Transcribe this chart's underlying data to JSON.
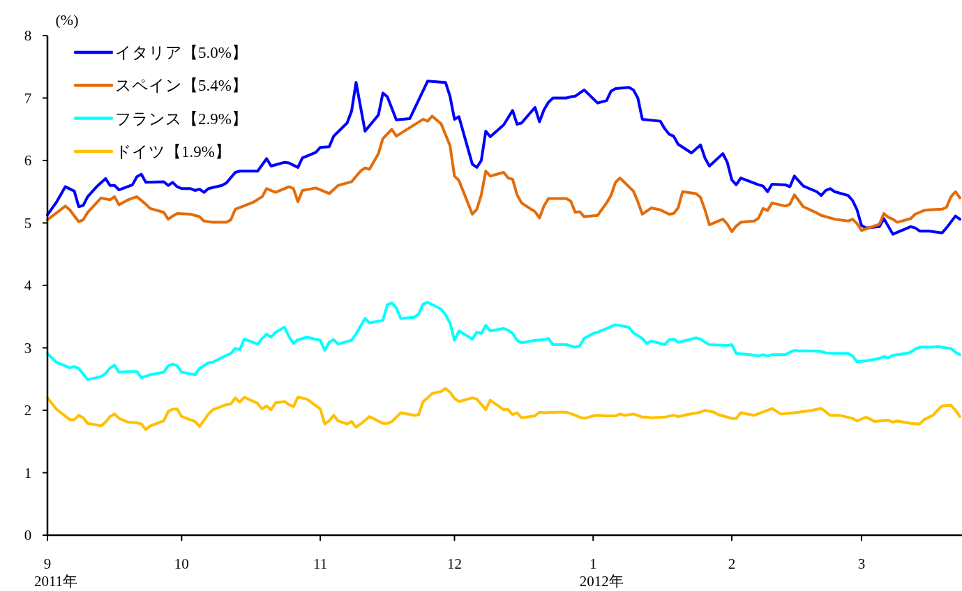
{
  "chart_data": {
    "type": "line",
    "ylabel": "(%)",
    "legend": "top left",
    "xlim": [
      "2011-09-01",
      "2012-03-23"
    ],
    "ylim": [
      0,
      8
    ],
    "yticks": [
      0,
      1,
      2,
      3,
      4,
      5,
      6,
      7,
      8
    ],
    "xticks": [
      {
        "value": "2011-09-01",
        "label": "9\n2011年"
      },
      {
        "value": "2011-10-01",
        "label": "10"
      },
      {
        "value": "2011-11-01",
        "label": "11"
      },
      {
        "value": "2011-12-01",
        "label": "12"
      },
      {
        "value": "2012-01-01",
        "label": "1\n2012年"
      },
      {
        "value": "2012-02-01",
        "label": "2"
      },
      {
        "value": "2012-03-01",
        "label": "3"
      }
    ],
    "series": [
      {
        "name": "イタリア【5.0%】",
        "color": "#0000ff",
        "x": [
          "2011-09-01",
          "2011-09-03",
          "2011-09-05",
          "2011-09-07",
          "2011-09-08",
          "2011-09-09",
          "2011-09-10",
          "2011-09-12",
          "2011-09-14",
          "2011-09-15",
          "2011-09-16",
          "2011-09-17",
          "2011-09-20",
          "2011-09-21",
          "2011-09-22",
          "2011-09-23",
          "2011-09-27",
          "2011-09-28",
          "2011-09-29",
          "2011-09-30",
          "2011-10-01",
          "2011-10-03",
          "2011-10-04",
          "2011-10-05",
          "2011-10-06",
          "2011-10-07",
          "2011-10-10",
          "2011-10-11",
          "2011-10-13",
          "2011-10-14",
          "2011-10-18",
          "2011-10-19",
          "2011-10-20",
          "2011-10-21",
          "2011-10-24",
          "2011-10-25",
          "2011-10-27",
          "2011-10-28",
          "2011-10-31",
          "2011-11-01",
          "2011-11-03",
          "2011-11-04",
          "2011-11-07",
          "2011-11-08",
          "2011-11-09",
          "2011-11-11",
          "2011-11-14",
          "2011-11-15",
          "2011-11-16",
          "2011-11-18",
          "2011-11-21",
          "2011-11-25",
          "2011-11-29",
          "2011-11-30",
          "2011-12-01",
          "2011-12-02",
          "2011-12-05",
          "2011-12-06",
          "2011-12-07",
          "2011-12-08",
          "2011-12-09",
          "2011-12-12",
          "2011-12-14",
          "2011-12-15",
          "2011-12-16",
          "2011-12-19",
          "2011-12-20",
          "2011-12-21",
          "2011-12-22",
          "2011-12-23",
          "2011-12-26",
          "2011-12-27",
          "2011-12-28",
          "2011-12-30",
          "2012-01-02",
          "2012-01-04",
          "2012-01-05",
          "2012-01-06",
          "2012-01-09",
          "2012-01-10",
          "2012-01-11",
          "2012-01-12",
          "2012-01-16",
          "2012-01-17",
          "2012-01-18",
          "2012-01-19",
          "2012-01-20",
          "2012-01-23",
          "2012-01-25",
          "2012-01-26",
          "2012-01-27",
          "2012-01-30",
          "2012-01-31",
          "2012-02-01",
          "2012-02-02",
          "2012-02-03",
          "2012-02-07",
          "2012-02-08",
          "2012-02-09",
          "2012-02-10",
          "2012-02-13",
          "2012-02-14",
          "2012-02-15",
          "2012-02-17",
          "2012-02-20",
          "2012-02-21",
          "2012-02-22",
          "2012-02-23",
          "2012-02-24",
          "2012-02-27",
          "2012-02-28",
          "2012-02-29",
          "2012-03-01",
          "2012-03-02",
          "2012-03-05",
          "2012-03-06",
          "2012-03-08",
          "2012-03-12",
          "2012-03-13",
          "2012-03-14",
          "2012-03-16",
          "2012-03-19",
          "2012-03-20",
          "2012-03-22",
          "2012-03-23"
        ],
        "values": [
          5.13,
          5.33,
          5.58,
          5.51,
          5.26,
          5.28,
          5.42,
          5.58,
          5.71,
          5.6,
          5.6,
          5.53,
          5.61,
          5.74,
          5.78,
          5.65,
          5.66,
          5.6,
          5.65,
          5.58,
          5.55,
          5.55,
          5.52,
          5.54,
          5.49,
          5.55,
          5.6,
          5.64,
          5.81,
          5.83,
          5.83,
          5.93,
          6.03,
          5.91,
          5.97,
          5.96,
          5.89,
          6.04,
          6.13,
          6.21,
          6.22,
          6.39,
          6.6,
          6.79,
          7.25,
          6.47,
          6.73,
          7.08,
          7.02,
          6.65,
          6.67,
          7.27,
          7.25,
          7.03,
          6.66,
          6.7,
          5.94,
          5.89,
          6.0,
          6.47,
          6.38,
          6.57,
          6.8,
          6.58,
          6.6,
          6.85,
          6.62,
          6.81,
          6.93,
          7.0,
          7.0,
          7.02,
          7.03,
          7.13,
          6.92,
          6.96,
          7.11,
          7.15,
          7.17,
          7.13,
          7.0,
          6.66,
          6.63,
          6.51,
          6.42,
          6.39,
          6.26,
          6.12,
          6.25,
          6.04,
          5.91,
          6.11,
          5.97,
          5.69,
          5.61,
          5.72,
          5.61,
          5.59,
          5.5,
          5.62,
          5.61,
          5.58,
          5.75,
          5.59,
          5.5,
          5.44,
          5.52,
          5.55,
          5.5,
          5.44,
          5.36,
          5.21,
          4.96,
          4.92,
          4.94,
          5.07,
          4.82,
          4.94,
          4.92,
          4.87,
          4.87,
          4.84,
          4.92,
          5.11,
          5.06
        ]
      },
      {
        "name": "スペイン【5.4%】",
        "color": "#e36c0a",
        "x": [
          "2011-09-01",
          "2011-09-05",
          "2011-09-06",
          "2011-09-08",
          "2011-09-09",
          "2011-09-10",
          "2011-09-13",
          "2011-09-15",
          "2011-09-16",
          "2011-09-17",
          "2011-09-19",
          "2011-09-21",
          "2011-09-23",
          "2011-09-24",
          "2011-09-27",
          "2011-09-28",
          "2011-09-29",
          "2011-09-30",
          "2011-10-03",
          "2011-10-05",
          "2011-10-06",
          "2011-10-08",
          "2011-10-11",
          "2011-10-12",
          "2011-10-13",
          "2011-10-17",
          "2011-10-19",
          "2011-10-20",
          "2011-10-22",
          "2011-10-25",
          "2011-10-26",
          "2011-10-27",
          "2011-10-28",
          "2011-10-31",
          "2011-11-03",
          "2011-11-05",
          "2011-11-08",
          "2011-11-10",
          "2011-11-11",
          "2011-11-12",
          "2011-11-14",
          "2011-11-15",
          "2011-11-17",
          "2011-11-18",
          "2011-11-24",
          "2011-11-25",
          "2011-11-26",
          "2011-11-28",
          "2011-11-30",
          "2011-12-01",
          "2011-12-02",
          "2011-12-05",
          "2011-12-06",
          "2011-12-07",
          "2011-12-08",
          "2011-12-09",
          "2011-12-12",
          "2011-12-13",
          "2011-12-14",
          "2011-12-15",
          "2011-12-16",
          "2011-12-19",
          "2011-12-20",
          "2011-12-21",
          "2011-12-22",
          "2011-12-26",
          "2011-12-27",
          "2011-12-28",
          "2011-12-29",
          "2011-12-30",
          "2012-01-02",
          "2012-01-04",
          "2012-01-05",
          "2012-01-06",
          "2012-01-07",
          "2012-01-09",
          "2012-01-10",
          "2012-01-11",
          "2012-01-12",
          "2012-01-14",
          "2012-01-16",
          "2012-01-18",
          "2012-01-19",
          "2012-01-20",
          "2012-01-21",
          "2012-01-24",
          "2012-01-25",
          "2012-01-26",
          "2012-01-27",
          "2012-01-30",
          "2012-01-31",
          "2012-02-01",
          "2012-02-02",
          "2012-02-03",
          "2012-02-06",
          "2012-02-07",
          "2012-02-08",
          "2012-02-09",
          "2012-02-10",
          "2012-02-13",
          "2012-02-14",
          "2012-02-15",
          "2012-02-17",
          "2012-02-20",
          "2012-02-21",
          "2012-02-24",
          "2012-02-27",
          "2012-02-28",
          "2012-02-29",
          "2012-03-01",
          "2012-03-05",
          "2012-03-06",
          "2012-03-07",
          "2012-03-08",
          "2012-03-09",
          "2012-03-12",
          "2012-03-13",
          "2012-03-15",
          "2012-03-16",
          "2012-03-19",
          "2012-03-20",
          "2012-03-21",
          "2012-03-22",
          "2012-03-23"
        ],
        "values": [
          5.05,
          5.27,
          5.21,
          5.02,
          5.05,
          5.17,
          5.4,
          5.37,
          5.42,
          5.29,
          5.37,
          5.42,
          5.3,
          5.23,
          5.17,
          5.06,
          5.11,
          5.15,
          5.14,
          5.1,
          5.03,
          5.01,
          5.01,
          5.05,
          5.22,
          5.33,
          5.42,
          5.55,
          5.49,
          5.58,
          5.55,
          5.34,
          5.52,
          5.56,
          5.47,
          5.6,
          5.66,
          5.83,
          5.88,
          5.86,
          6.11,
          6.35,
          6.5,
          6.39,
          6.66,
          6.63,
          6.71,
          6.59,
          6.24,
          5.75,
          5.68,
          5.14,
          5.22,
          5.45,
          5.83,
          5.75,
          5.81,
          5.72,
          5.7,
          5.45,
          5.32,
          5.18,
          5.08,
          5.27,
          5.39,
          5.39,
          5.35,
          5.17,
          5.18,
          5.1,
          5.12,
          5.32,
          5.44,
          5.65,
          5.72,
          5.58,
          5.51,
          5.34,
          5.14,
          5.24,
          5.21,
          5.14,
          5.15,
          5.24,
          5.5,
          5.47,
          5.41,
          5.21,
          4.97,
          5.06,
          4.98,
          4.86,
          4.95,
          5.01,
          5.03,
          5.08,
          5.23,
          5.2,
          5.32,
          5.27,
          5.3,
          5.45,
          5.26,
          5.16,
          5.12,
          5.06,
          5.03,
          5.06,
          4.99,
          4.88,
          4.98,
          5.15,
          5.09,
          5.06,
          5.01,
          5.07,
          5.14,
          5.2,
          5.21,
          5.22,
          5.25,
          5.42,
          5.5,
          5.4
        ]
      },
      {
        "name": "フランス【2.9%】",
        "color": "#00ffff",
        "x": [
          "2011-09-01",
          "2011-09-03",
          "2011-09-06",
          "2011-09-07",
          "2011-09-08",
          "2011-09-10",
          "2011-09-13",
          "2011-09-14",
          "2011-09-15",
          "2011-09-16",
          "2011-09-17",
          "2011-09-19",
          "2011-09-21",
          "2011-09-22",
          "2011-09-24",
          "2011-09-27",
          "2011-09-28",
          "2011-09-29",
          "2011-09-30",
          "2011-10-01",
          "2011-10-04",
          "2011-10-05",
          "2011-10-07",
          "2011-10-08",
          "2011-10-11",
          "2011-10-12",
          "2011-10-13",
          "2011-10-14",
          "2011-10-15",
          "2011-10-18",
          "2011-10-19",
          "2011-10-20",
          "2011-10-21",
          "2011-10-22",
          "2011-10-24",
          "2011-10-25",
          "2011-10-26",
          "2011-10-27",
          "2011-10-29",
          "2011-11-01",
          "2011-11-02",
          "2011-11-03",
          "2011-11-04",
          "2011-11-05",
          "2011-11-08",
          "2011-11-09",
          "2011-11-11",
          "2011-11-12",
          "2011-11-15",
          "2011-11-16",
          "2011-11-17",
          "2011-11-18",
          "2011-11-19",
          "2011-11-22",
          "2011-11-23",
          "2011-11-24",
          "2011-11-25",
          "2011-11-28",
          "2011-11-29",
          "2011-11-30",
          "2011-12-01",
          "2011-12-02",
          "2011-12-05",
          "2011-12-06",
          "2011-12-07",
          "2011-12-08",
          "2011-12-09",
          "2011-12-12",
          "2011-12-13",
          "2011-12-14",
          "2011-12-15",
          "2011-12-16",
          "2011-12-19",
          "2011-12-21",
          "2011-12-22",
          "2011-12-23",
          "2011-12-26",
          "2011-12-28",
          "2011-12-29",
          "2011-12-30",
          "2012-01-01",
          "2012-01-02",
          "2012-01-04",
          "2012-01-06",
          "2012-01-09",
          "2012-01-10",
          "2012-01-12",
          "2012-01-13",
          "2012-01-14",
          "2012-01-17",
          "2012-01-18",
          "2012-01-19",
          "2012-01-20",
          "2012-01-23",
          "2012-01-24",
          "2012-01-25",
          "2012-01-26",
          "2012-01-27",
          "2012-01-31",
          "2012-02-01",
          "2012-02-02",
          "2012-02-05",
          "2012-02-07",
          "2012-02-08",
          "2012-02-09",
          "2012-02-10",
          "2012-02-13",
          "2012-02-14",
          "2012-02-15",
          "2012-02-16",
          "2012-02-19",
          "2012-02-21",
          "2012-02-22",
          "2012-02-24",
          "2012-02-27",
          "2012-02-28",
          "2012-02-29",
          "2012-03-02",
          "2012-03-05",
          "2012-03-06",
          "2012-03-07",
          "2012-03-08",
          "2012-03-11",
          "2012-03-12",
          "2012-03-13",
          "2012-03-14",
          "2012-03-17",
          "2012-03-18",
          "2012-03-21",
          "2012-03-22",
          "2012-03-23"
        ],
        "values": [
          2.91,
          2.77,
          2.68,
          2.7,
          2.67,
          2.49,
          2.54,
          2.59,
          2.68,
          2.72,
          2.61,
          2.62,
          2.62,
          2.52,
          2.57,
          2.61,
          2.71,
          2.74,
          2.71,
          2.61,
          2.57,
          2.67,
          2.76,
          2.77,
          2.88,
          2.91,
          2.99,
          2.97,
          3.14,
          3.06,
          3.15,
          3.22,
          3.17,
          3.25,
          3.33,
          3.18,
          3.07,
          3.13,
          3.17,
          3.12,
          2.96,
          3.09,
          3.13,
          3.06,
          3.12,
          3.22,
          3.47,
          3.4,
          3.44,
          3.69,
          3.72,
          3.64,
          3.47,
          3.49,
          3.54,
          3.7,
          3.73,
          3.62,
          3.53,
          3.4,
          3.12,
          3.27,
          3.14,
          3.25,
          3.23,
          3.36,
          3.27,
          3.31,
          3.28,
          3.23,
          3.12,
          3.08,
          3.12,
          3.13,
          3.15,
          3.05,
          3.05,
          3.01,
          3.03,
          3.15,
          3.23,
          3.25,
          3.31,
          3.37,
          3.33,
          3.24,
          3.15,
          3.07,
          3.11,
          3.05,
          3.13,
          3.14,
          3.09,
          3.14,
          3.16,
          3.14,
          3.09,
          3.05,
          3.04,
          3.05,
          2.91,
          2.89,
          2.87,
          2.89,
          2.87,
          2.89,
          2.89,
          2.93,
          2.96,
          2.95,
          2.95,
          2.94,
          2.92,
          2.91,
          2.91,
          2.87,
          2.78,
          2.79,
          2.83,
          2.86,
          2.84,
          2.88,
          2.91,
          2.93,
          2.98,
          3.01,
          3.01,
          3.02,
          2.99,
          2.93,
          2.89
        ]
      },
      {
        "name": "ドイツ【1.9%】",
        "color": "#ffc000",
        "x": [
          "2011-09-01",
          "2011-09-03",
          "2011-09-06",
          "2011-09-07",
          "2011-09-08",
          "2011-09-09",
          "2011-09-10",
          "2011-09-13",
          "2011-09-14",
          "2011-09-15",
          "2011-09-16",
          "2011-09-17",
          "2011-09-19",
          "2011-09-21",
          "2011-09-22",
          "2011-09-23",
          "2011-09-24",
          "2011-09-27",
          "2011-09-28",
          "2011-09-29",
          "2011-09-30",
          "2011-10-01",
          "2011-10-04",
          "2011-10-05",
          "2011-10-07",
          "2011-10-08",
          "2011-10-11",
          "2011-10-12",
          "2011-10-13",
          "2011-10-14",
          "2011-10-15",
          "2011-10-18",
          "2011-10-19",
          "2011-10-20",
          "2011-10-21",
          "2011-10-22",
          "2011-10-24",
          "2011-10-25",
          "2011-10-26",
          "2011-10-27",
          "2011-10-29",
          "2011-11-01",
          "2011-11-02",
          "2011-11-03",
          "2011-11-04",
          "2011-11-05",
          "2011-11-07",
          "2011-11-08",
          "2011-11-09",
          "2011-11-10",
          "2011-11-12",
          "2011-11-15",
          "2011-11-16",
          "2011-11-17",
          "2011-11-19",
          "2011-11-22",
          "2011-11-23",
          "2011-11-24",
          "2011-11-25",
          "2011-11-26",
          "2011-11-28",
          "2011-11-29",
          "2011-11-30",
          "2011-12-01",
          "2011-12-02",
          "2011-12-05",
          "2011-12-06",
          "2011-12-08",
          "2011-12-09",
          "2011-12-12",
          "2011-12-13",
          "2011-12-14",
          "2011-12-15",
          "2011-12-16",
          "2011-12-19",
          "2011-12-20",
          "2011-12-21",
          "2011-12-24",
          "2011-12-26",
          "2011-12-28",
          "2011-12-29",
          "2011-12-30",
          "2012-01-01",
          "2012-01-02",
          "2012-01-04",
          "2012-01-06",
          "2012-01-07",
          "2012-01-08",
          "2012-01-10",
          "2012-01-12",
          "2012-01-13",
          "2012-01-14",
          "2012-01-17",
          "2012-01-19",
          "2012-01-20",
          "2012-01-22",
          "2012-01-25",
          "2012-01-26",
          "2012-01-28",
          "2012-01-29",
          "2012-02-01",
          "2012-02-02",
          "2012-02-03",
          "2012-02-06",
          "2012-02-09",
          "2012-02-10",
          "2012-02-12",
          "2012-02-15",
          "2012-02-16",
          "2012-02-19",
          "2012-02-21",
          "2012-02-23",
          "2012-02-25",
          "2012-02-28",
          "2012-02-29",
          "2012-03-02",
          "2012-03-04",
          "2012-03-05",
          "2012-03-07",
          "2012-03-08",
          "2012-03-09",
          "2012-03-12",
          "2012-03-14",
          "2012-03-15",
          "2012-03-17",
          "2012-03-18",
          "2012-03-19",
          "2012-03-21",
          "2012-03-22",
          "2012-03-23"
        ],
        "values": [
          2.2,
          2.02,
          1.85,
          1.85,
          1.92,
          1.88,
          1.79,
          1.75,
          1.81,
          1.9,
          1.94,
          1.87,
          1.81,
          1.8,
          1.78,
          1.69,
          1.75,
          1.83,
          1.98,
          2.02,
          2.02,
          1.9,
          1.82,
          1.74,
          1.94,
          2.01,
          2.09,
          2.1,
          2.2,
          2.13,
          2.21,
          2.11,
          2.02,
          2.07,
          2.01,
          2.12,
          2.14,
          2.09,
          2.06,
          2.21,
          2.18,
          2.02,
          1.78,
          1.83,
          1.92,
          1.83,
          1.78,
          1.82,
          1.73,
          1.78,
          1.9,
          1.79,
          1.79,
          1.82,
          1.96,
          1.92,
          1.93,
          2.14,
          2.2,
          2.27,
          2.3,
          2.35,
          2.29,
          2.19,
          2.14,
          2.2,
          2.18,
          2.01,
          2.16,
          2.01,
          2.01,
          1.93,
          1.96,
          1.88,
          1.91,
          1.97,
          1.96,
          1.97,
          1.97,
          1.92,
          1.89,
          1.87,
          1.91,
          1.92,
          1.91,
          1.91,
          1.94,
          1.92,
          1.94,
          1.89,
          1.89,
          1.88,
          1.89,
          1.92,
          1.9,
          1.93,
          1.97,
          2.0,
          1.97,
          1.93,
          1.87,
          1.87,
          1.96,
          1.92,
          2.0,
          2.03,
          1.94,
          1.96,
          1.97,
          2.0,
          2.03,
          1.92,
          1.92,
          1.87,
          1.83,
          1.89,
          1.82,
          1.83,
          1.84,
          1.81,
          1.83,
          1.79,
          1.78,
          1.85,
          1.92,
          2.0,
          2.07,
          2.08,
          2.0,
          1.9
        ]
      }
    ]
  }
}
